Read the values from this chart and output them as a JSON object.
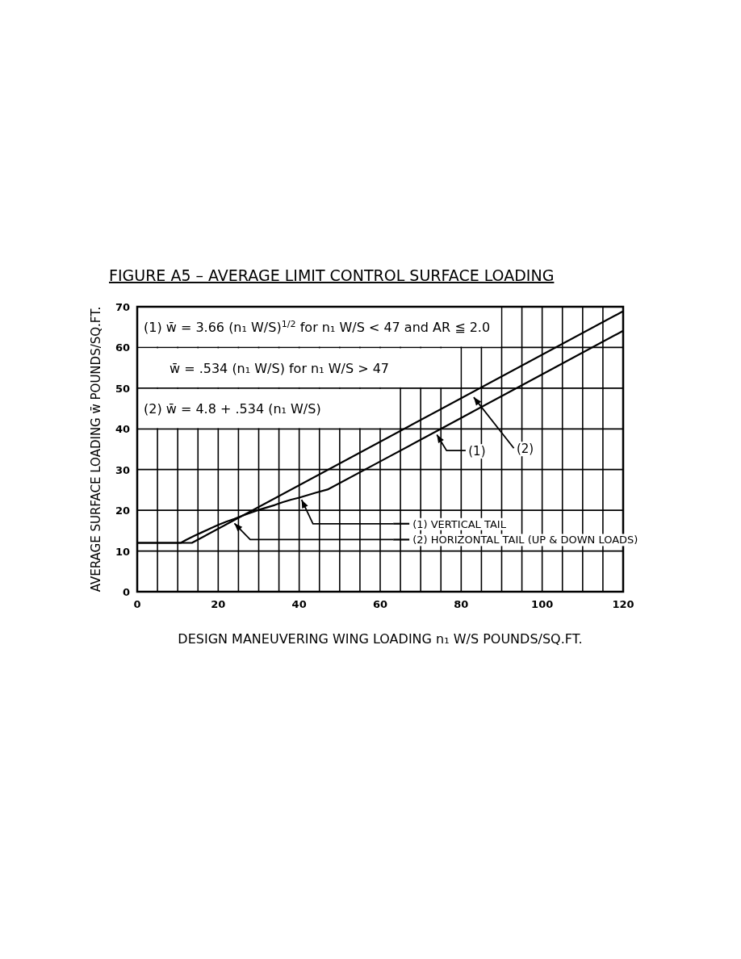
{
  "chart_data": {
    "type": "line",
    "title": "FIGURE A5 – AVERAGE LIMIT CONTROL SURFACE LOADING",
    "xlabel": "DESIGN MANEUVERING WING LOADING n₁ W/S POUNDS/SQ.FT.",
    "ylabel": "AVERAGE SURFACE LOADING w̄ POUNDS/SQ.FT.",
    "xlim": [
      0,
      120
    ],
    "ylim": [
      0,
      70
    ],
    "xticks": [
      0,
      {
        "value": 5,
        "label": null
      },
      {
        "value": 10,
        "label": null
      },
      {
        "value": 15,
        "label": null
      },
      20,
      {
        "value": 25,
        "label": null
      },
      {
        "value": 30,
        "label": null
      },
      {
        "value": 35,
        "label": null
      },
      40,
      {
        "value": 45,
        "label": null
      },
      {
        "value": 50,
        "label": null
      },
      {
        "value": 55,
        "label": null
      },
      60,
      {
        "value": 65,
        "label": null
      },
      {
        "value": 70,
        "label": null
      },
      {
        "value": 75,
        "label": null
      },
      80,
      {
        "value": 85,
        "label": null
      },
      {
        "value": 90,
        "label": null
      },
      {
        "value": 95,
        "label": null
      },
      100,
      {
        "value": 105,
        "label": null
      },
      {
        "value": 110,
        "label": null
      },
      {
        "value": 115,
        "label": null
      },
      120
    ],
    "yticks": [
      0,
      10,
      20,
      30,
      40,
      50,
      60,
      70
    ],
    "grid": true,
    "legend": "bottom right",
    "line_style": "solid",
    "series": [
      {
        "name": "(1) VERTICAL TAIL",
        "color": "#000000",
        "x": [
          0,
          10.75,
          12,
          14,
          16,
          18,
          20,
          22,
          24,
          26,
          28,
          30,
          32,
          34,
          36,
          38,
          40,
          42,
          44,
          47,
          60,
          80,
          100,
          120
        ],
        "values": [
          12,
          12,
          12.7,
          13.7,
          14.6,
          15.5,
          16.4,
          17.2,
          17.9,
          18.7,
          19.4,
          20.1,
          20.7,
          21.3,
          22,
          22.6,
          23.1,
          23.7,
          24.3,
          25.1,
          32,
          42.7,
          53.4,
          64.1
        ]
      },
      {
        "name": "(2) HORIZONTAL TAIL (UP & DOWN LOADS)",
        "color": "#000000",
        "x": [
          0,
          13.5,
          120
        ],
        "values": [
          12,
          12,
          68.9
        ]
      }
    ],
    "annotations": [
      "(1)  w̄ = 3.66 (n₁ W/S)$^{1/2}$  for  n₁ W/S < 47 and AR ≦ 2.0",
      "w̄ = .534 (n₁ W/S)  for  n₁ W/S > 47",
      "(2)  w̄ = 4.8 + .534 (n₁ W/S)",
      "(1)",
      "(2)"
    ]
  }
}
